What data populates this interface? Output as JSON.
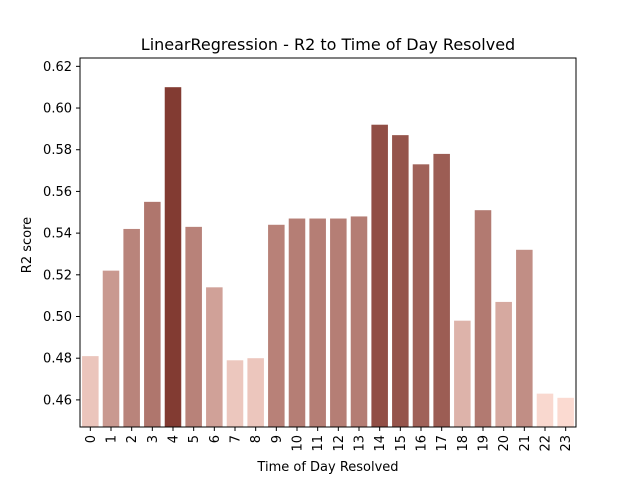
{
  "chart_data": {
    "type": "bar",
    "title": "LinearRegression - R2 to Time of Day Resolved",
    "xlabel": "Time of Day Resolved",
    "ylabel": "R2 score",
    "categories": [
      "0",
      "1",
      "2",
      "3",
      "4",
      "5",
      "6",
      "7",
      "8",
      "9",
      "10",
      "11",
      "12",
      "13",
      "14",
      "15",
      "16",
      "17",
      "18",
      "19",
      "20",
      "21",
      "22",
      "23"
    ],
    "values": [
      0.481,
      0.522,
      0.542,
      0.555,
      0.61,
      0.543,
      0.514,
      0.479,
      0.48,
      0.544,
      0.547,
      0.547,
      0.547,
      0.548,
      0.592,
      0.587,
      0.573,
      0.578,
      0.498,
      0.551,
      0.507,
      0.532,
      0.463,
      0.461
    ],
    "ylim": [
      0.447,
      0.624
    ],
    "yticks": [
      "0.46",
      "0.48",
      "0.50",
      "0.52",
      "0.54",
      "0.56",
      "0.58",
      "0.60",
      "0.62"
    ],
    "color_scale": {
      "low": "#fbdad1",
      "high": "#823b32"
    },
    "grid": false,
    "legend": "none"
  }
}
